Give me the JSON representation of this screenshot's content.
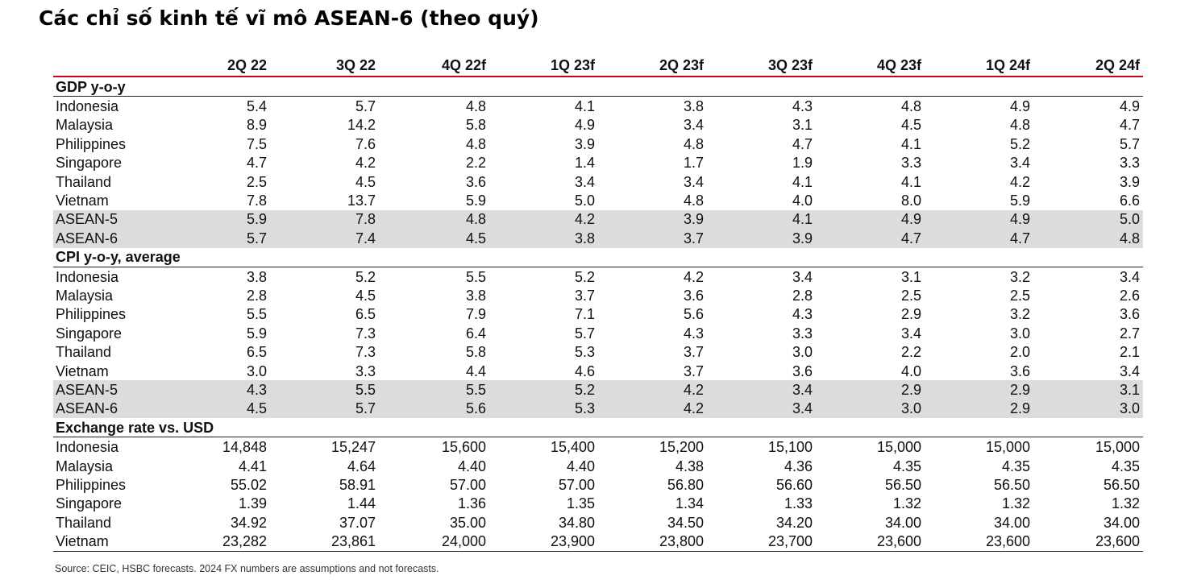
{
  "title": "Các chỉ số kinh tế vĩ mô ASEAN-6 (theo quý)",
  "columns": [
    "2Q 22",
    "3Q 22",
    "4Q 22f",
    "1Q 23f",
    "2Q 23f",
    "3Q 23f",
    "4Q 23f",
    "1Q 24f",
    "2Q 24f"
  ],
  "sections": [
    {
      "name": "GDP y-o-y",
      "rows": [
        {
          "label": "Indonesia",
          "values": [
            "5.4",
            "5.7",
            "4.8",
            "4.1",
            "3.8",
            "4.3",
            "4.8",
            "4.9",
            "4.9"
          ]
        },
        {
          "label": "Malaysia",
          "values": [
            "8.9",
            "14.2",
            "5.8",
            "4.9",
            "3.4",
            "3.1",
            "4.5",
            "4.8",
            "4.7"
          ]
        },
        {
          "label": "Philippines",
          "values": [
            "7.5",
            "7.6",
            "4.8",
            "3.9",
            "4.8",
            "4.7",
            "4.1",
            "5.2",
            "5.7"
          ]
        },
        {
          "label": "Singapore",
          "values": [
            "4.7",
            "4.2",
            "2.2",
            "1.4",
            "1.7",
            "1.9",
            "3.3",
            "3.4",
            "3.3"
          ]
        },
        {
          "label": "Thailand",
          "values": [
            "2.5",
            "4.5",
            "3.6",
            "3.4",
            "3.4",
            "4.1",
            "4.1",
            "4.2",
            "3.9"
          ]
        },
        {
          "label": "Vietnam",
          "values": [
            "7.8",
            "13.7",
            "5.9",
            "5.0",
            "4.8",
            "4.0",
            "8.0",
            "5.9",
            "6.6"
          ]
        },
        {
          "label": "ASEAN-5",
          "values": [
            "5.9",
            "7.8",
            "4.8",
            "4.2",
            "3.9",
            "4.1",
            "4.9",
            "4.9",
            "5.0"
          ],
          "shaded": true
        },
        {
          "label": "ASEAN-6",
          "values": [
            "5.7",
            "7.4",
            "4.5",
            "3.8",
            "3.7",
            "3.9",
            "4.7",
            "4.7",
            "4.8"
          ],
          "shaded": true
        }
      ]
    },
    {
      "name": "CPI y-o-y, average",
      "rows": [
        {
          "label": "Indonesia",
          "values": [
            "3.8",
            "5.2",
            "5.5",
            "5.2",
            "4.2",
            "3.4",
            "3.1",
            "3.2",
            "3.4"
          ]
        },
        {
          "label": "Malaysia",
          "values": [
            "2.8",
            "4.5",
            "3.8",
            "3.7",
            "3.6",
            "2.8",
            "2.5",
            "2.5",
            "2.6"
          ]
        },
        {
          "label": "Philippines",
          "values": [
            "5.5",
            "6.5",
            "7.9",
            "7.1",
            "5.6",
            "4.3",
            "2.9",
            "3.2",
            "3.6"
          ]
        },
        {
          "label": "Singapore",
          "values": [
            "5.9",
            "7.3",
            "6.4",
            "5.7",
            "4.3",
            "3.3",
            "3.4",
            "3.0",
            "2.7"
          ]
        },
        {
          "label": "Thailand",
          "values": [
            "6.5",
            "7.3",
            "5.8",
            "5.3",
            "3.7",
            "3.0",
            "2.2",
            "2.0",
            "2.1"
          ]
        },
        {
          "label": "Vietnam",
          "values": [
            "3.0",
            "3.3",
            "4.4",
            "4.6",
            "3.7",
            "3.6",
            "4.0",
            "3.6",
            "3.4"
          ]
        },
        {
          "label": "ASEAN-5",
          "values": [
            "4.3",
            "5.5",
            "5.5",
            "5.2",
            "4.2",
            "3.4",
            "2.9",
            "2.9",
            "3.1"
          ],
          "shaded": true
        },
        {
          "label": "ASEAN-6",
          "values": [
            "4.5",
            "5.7",
            "5.6",
            "5.3",
            "4.2",
            "3.4",
            "3.0",
            "2.9",
            "3.0"
          ],
          "shaded": true
        }
      ]
    },
    {
      "name": "Exchange rate vs. USD",
      "rows": [
        {
          "label": "Indonesia",
          "values": [
            "14,848",
            "15,247",
            "15,600",
            "15,400",
            "15,200",
            "15,100",
            "15,000",
            "15,000",
            "15,000"
          ]
        },
        {
          "label": "Malaysia",
          "values": [
            "4.41",
            "4.64",
            "4.40",
            "4.40",
            "4.38",
            "4.36",
            "4.35",
            "4.35",
            "4.35"
          ]
        },
        {
          "label": "Philippines",
          "values": [
            "55.02",
            "58.91",
            "57.00",
            "57.00",
            "56.80",
            "56.60",
            "56.50",
            "56.50",
            "56.50"
          ]
        },
        {
          "label": "Singapore",
          "values": [
            "1.39",
            "1.44",
            "1.36",
            "1.35",
            "1.34",
            "1.33",
            "1.32",
            "1.32",
            "1.32"
          ]
        },
        {
          "label": "Thailand",
          "values": [
            "34.92",
            "37.07",
            "35.00",
            "34.80",
            "34.50",
            "34.20",
            "34.00",
            "34.00",
            "34.00"
          ]
        },
        {
          "label": "Vietnam",
          "values": [
            "23,282",
            "23,861",
            "24,000",
            "23,900",
            "23,800",
            "23,700",
            "23,600",
            "23,600",
            "23,600"
          ]
        }
      ]
    }
  ],
  "source": "Source: CEIC, HSBC forecasts. 2024 FX numbers are assumptions and not forecasts.",
  "colors": {
    "header_rule": "#d0021b",
    "shade": "#dcdcdc"
  }
}
